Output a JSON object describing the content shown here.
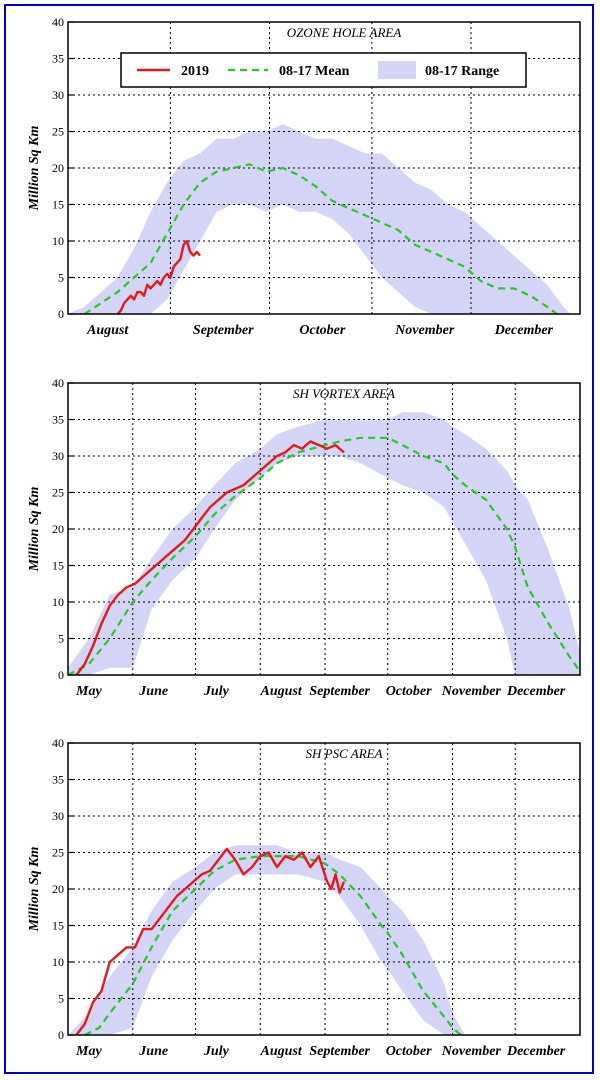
{
  "legend": {
    "items": [
      {
        "label": "2019",
        "color": "#e31a1c",
        "style": "solid"
      },
      {
        "label": "08-17 Mean",
        "color": "#22cc22",
        "style": "dashed"
      },
      {
        "label": "08-17 Range",
        "color": "#d4d4f7",
        "style": "fill"
      }
    ]
  },
  "colors": {
    "range_fill": "#d4d4f7",
    "mean": "#22cc22",
    "current": "#e31a1c",
    "border": "#0000cc"
  },
  "chart_data": [
    {
      "type": "line",
      "title": "OZONE HOLE AREA",
      "ylabel": "Million Sq Km",
      "ylim": [
        0,
        40
      ],
      "yticks": [
        0,
        5,
        10,
        15,
        20,
        25,
        30,
        35,
        40
      ],
      "xlim": [
        0,
        155
      ],
      "x_unit": "days since August 1",
      "month_labels": [
        {
          "label": "August",
          "x": 12
        },
        {
          "label": "September",
          "x": 47
        },
        {
          "label": "October",
          "x": 77
        },
        {
          "label": "November",
          "x": 108
        },
        {
          "label": "December",
          "x": 138
        }
      ],
      "x_gridlines": [
        31,
        61,
        92,
        122
      ],
      "series": [
        {
          "name": "08-17 Range",
          "kind": "range",
          "x": [
            0,
            5,
            10,
            15,
            20,
            25,
            30,
            35,
            40,
            45,
            50,
            55,
            60,
            65,
            70,
            75,
            80,
            85,
            90,
            95,
            100,
            105,
            110,
            115,
            120,
            125,
            130,
            135,
            140,
            145,
            150,
            152
          ],
          "low": [
            0,
            0,
            0,
            0,
            0,
            0,
            2,
            6,
            10,
            14,
            15,
            15,
            14,
            15,
            14,
            14,
            13,
            11,
            8,
            5,
            3,
            1,
            0,
            0,
            0,
            0,
            0,
            0,
            0,
            0,
            0,
            0
          ],
          "high": [
            0,
            1,
            3,
            5,
            9,
            14,
            18,
            21,
            22,
            24,
            24,
            25,
            25,
            26,
            25,
            24,
            24,
            23,
            22,
            22,
            20,
            18,
            17,
            15,
            14,
            12,
            10,
            8,
            6,
            4,
            1,
            0
          ]
        },
        {
          "name": "08-17 Mean",
          "kind": "mean",
          "x": [
            5,
            10,
            15,
            20,
            25,
            30,
            35,
            40,
            45,
            50,
            55,
            60,
            65,
            70,
            75,
            80,
            85,
            90,
            95,
            100,
            105,
            110,
            115,
            120,
            125,
            130,
            135,
            140,
            145,
            148
          ],
          "y": [
            0,
            1.5,
            3,
            5,
            7,
            11,
            15,
            18,
            19.5,
            20,
            20.5,
            19.5,
            20,
            19,
            17.5,
            15.5,
            14.5,
            13.5,
            12.5,
            11.5,
            9.5,
            8.5,
            7.5,
            6.5,
            4.5,
            3.5,
            3.5,
            2.5,
            1,
            0
          ]
        },
        {
          "name": "2019",
          "kind": "current",
          "x": [
            15,
            16,
            17,
            18,
            19,
            20,
            21,
            22,
            23,
            24,
            25,
            26,
            27,
            28,
            29,
            30,
            31,
            32,
            33,
            34,
            35,
            36,
            37,
            38,
            39,
            40
          ],
          "y": [
            0,
            0.5,
            1.5,
            2,
            2.5,
            2,
            3,
            3,
            2.5,
            4,
            3.5,
            4,
            4.5,
            4,
            5,
            5.5,
            5,
            6.5,
            7,
            7.5,
            9.5,
            10,
            8.5,
            8,
            8.5,
            8
          ]
        }
      ]
    },
    {
      "type": "line",
      "title": "SH VORTEX AREA",
      "ylabel": "Million Sq Km",
      "ylim": [
        0,
        40
      ],
      "yticks": [
        0,
        5,
        10,
        15,
        20,
        25,
        30,
        35,
        40
      ],
      "xlim": [
        0,
        245
      ],
      "x_unit": "days since May 1",
      "month_labels": [
        {
          "label": "May",
          "x": 10
        },
        {
          "label": "June",
          "x": 41
        },
        {
          "label": "July",
          "x": 71
        },
        {
          "label": "August",
          "x": 102
        },
        {
          "label": "September",
          "x": 130
        },
        {
          "label": "October",
          "x": 163
        },
        {
          "label": "November",
          "x": 193
        },
        {
          "label": "December",
          "x": 224
        }
      ],
      "x_gridlines": [
        31,
        61,
        92,
        123,
        153,
        184,
        214
      ],
      "series": [
        {
          "name": "08-17 Range",
          "kind": "range",
          "x": [
            0,
            10,
            20,
            31,
            40,
            50,
            61,
            70,
            80,
            92,
            100,
            110,
            123,
            130,
            140,
            153,
            160,
            170,
            180,
            184,
            190,
            200,
            210,
            214,
            220,
            230,
            240,
            245
          ],
          "low": [
            0,
            0,
            1,
            1,
            9,
            13,
            16,
            20,
            24,
            27,
            29,
            30,
            30,
            30,
            29,
            27,
            26,
            25,
            23,
            21,
            18,
            13,
            5,
            0,
            0,
            0,
            0,
            0
          ],
          "high": [
            1,
            5,
            11,
            12,
            16,
            20,
            23,
            26,
            29,
            31,
            33,
            34,
            35,
            35,
            35,
            35,
            36,
            36,
            35,
            34,
            33,
            31,
            28,
            26,
            24,
            17,
            9,
            3
          ]
        },
        {
          "name": "08-17 Mean",
          "kind": "mean",
          "x": [
            0,
            10,
            20,
            31,
            40,
            50,
            61,
            70,
            80,
            92,
            100,
            110,
            123,
            130,
            140,
            153,
            160,
            170,
            180,
            184,
            190,
            200,
            210,
            214,
            220,
            230,
            240,
            245
          ],
          "y": [
            0,
            1.5,
            5,
            10,
            13,
            16,
            19,
            22,
            24.5,
            27,
            29,
            30.5,
            31.5,
            32,
            32.5,
            32.5,
            31.5,
            30,
            29,
            27.5,
            26,
            24,
            20,
            17.5,
            12,
            7,
            2.5,
            0.5
          ]
        },
        {
          "name": "2019",
          "kind": "current",
          "x": [
            4,
            8,
            12,
            16,
            20,
            24,
            28,
            32,
            36,
            40,
            44,
            48,
            52,
            56,
            60,
            64,
            68,
            72,
            76,
            80,
            84,
            88,
            92,
            96,
            100,
            104,
            108,
            112,
            116,
            120,
            124,
            128,
            132
          ],
          "y": [
            0,
            1.5,
            4,
            7,
            9.5,
            11,
            12,
            12.5,
            13.5,
            14.5,
            15.5,
            16.5,
            17.5,
            18.5,
            20,
            21.5,
            23,
            24,
            25,
            25.5,
            26,
            27,
            28,
            29,
            30,
            30.5,
            31.5,
            31,
            32,
            31.5,
            31,
            31.5,
            30.5
          ]
        }
      ]
    },
    {
      "type": "line",
      "title": "SH PSC AREA",
      "ylabel": "Million Sq Km",
      "ylim": [
        0,
        40
      ],
      "yticks": [
        0,
        5,
        10,
        15,
        20,
        25,
        30,
        35,
        40
      ],
      "xlim": [
        0,
        245
      ],
      "x_unit": "days since May 1",
      "month_labels": [
        {
          "label": "May",
          "x": 10
        },
        {
          "label": "June",
          "x": 41
        },
        {
          "label": "July",
          "x": 71
        },
        {
          "label": "August",
          "x": 102
        },
        {
          "label": "September",
          "x": 130
        },
        {
          "label": "October",
          "x": 163
        },
        {
          "label": "November",
          "x": 193
        },
        {
          "label": "December",
          "x": 224
        }
      ],
      "x_gridlines": [
        31,
        61,
        92,
        123,
        153,
        184,
        214
      ],
      "series": [
        {
          "name": "08-17 Range",
          "kind": "range",
          "x": [
            0,
            10,
            20,
            31,
            40,
            50,
            61,
            70,
            80,
            92,
            100,
            110,
            123,
            130,
            140,
            150,
            153,
            160,
            170,
            180,
            184,
            190,
            192
          ],
          "low": [
            0,
            0,
            0,
            1,
            8,
            13,
            17,
            20,
            22,
            22,
            22,
            22,
            21,
            19,
            15,
            10,
            9,
            6,
            2,
            0,
            0,
            0,
            0
          ],
          "high": [
            0,
            3,
            8,
            12,
            17,
            21,
            23,
            25,
            26,
            26,
            26,
            25,
            25,
            24,
            23,
            20,
            19,
            17,
            13,
            7,
            3,
            0,
            0
          ]
        },
        {
          "name": "08-17 Mean",
          "kind": "mean",
          "x": [
            8,
            15,
            20,
            31,
            40,
            50,
            61,
            70,
            80,
            92,
            100,
            110,
            123,
            130,
            140,
            150,
            153,
            160,
            170,
            180,
            184,
            188
          ],
          "y": [
            0,
            1,
            3,
            7,
            12,
            17,
            20,
            22.5,
            24,
            24.5,
            24.5,
            24.5,
            23.5,
            22,
            19,
            15,
            14,
            11,
            6,
            2.5,
            1,
            0
          ]
        },
        {
          "name": "2019",
          "kind": "current",
          "x": [
            4,
            8,
            12,
            16,
            20,
            24,
            28,
            32,
            36,
            40,
            44,
            48,
            52,
            56,
            60,
            64,
            68,
            72,
            76,
            80,
            84,
            88,
            92,
            96,
            100,
            104,
            108,
            112,
            116,
            120,
            124,
            126,
            128,
            130,
            132
          ],
          "y": [
            0,
            1.5,
            4.5,
            6,
            10,
            11,
            12,
            12,
            14.5,
            14.5,
            16,
            17.5,
            19,
            20,
            21,
            22,
            22.5,
            24,
            25.5,
            24,
            22,
            23,
            24.5,
            25,
            23,
            24.5,
            24,
            25,
            23,
            24.5,
            21,
            20,
            22,
            19.5,
            21
          ]
        }
      ]
    }
  ]
}
